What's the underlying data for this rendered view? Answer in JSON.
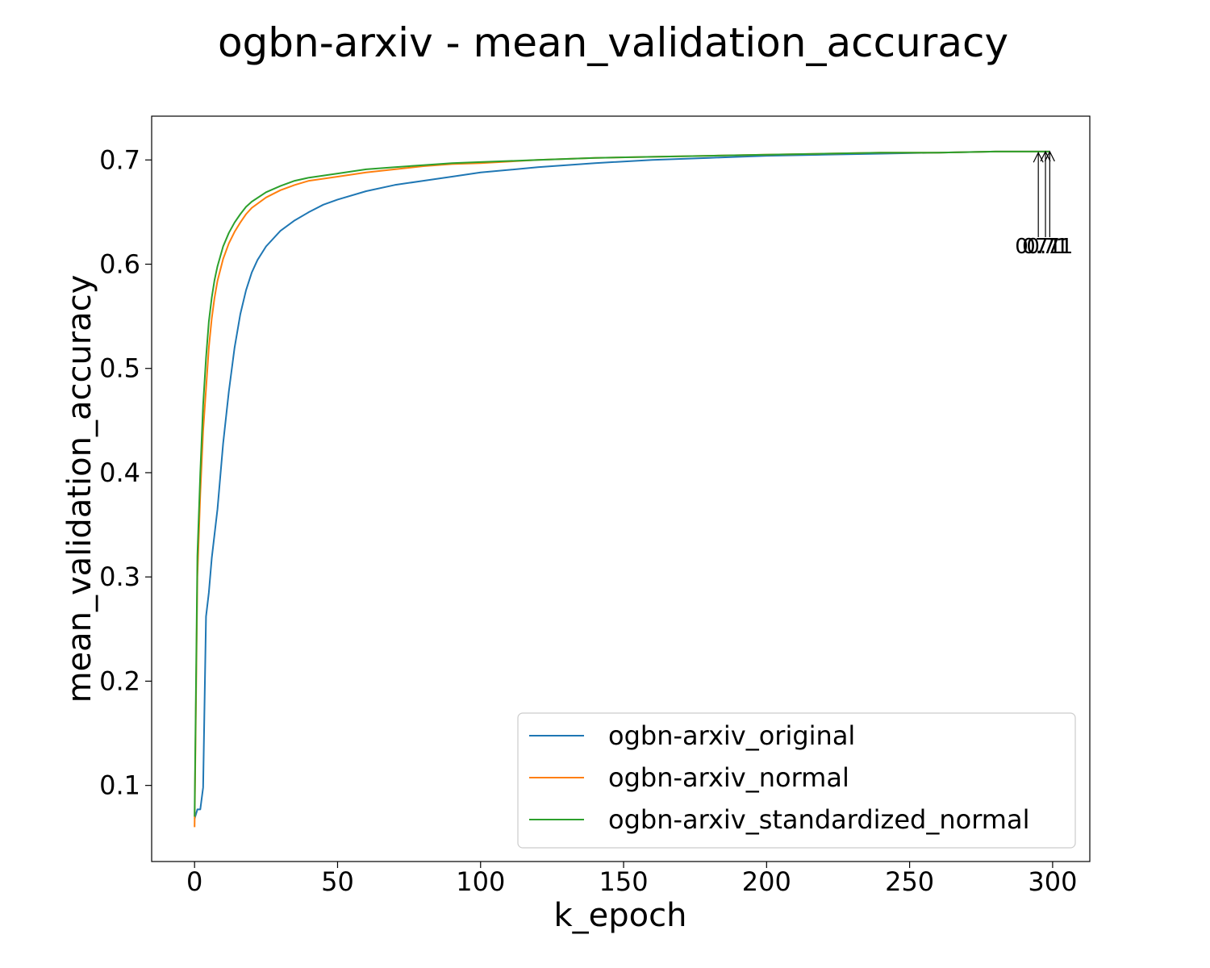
{
  "chart_data": {
    "type": "line",
    "title": "ogbn-arxiv - mean_validation_accuracy",
    "xlabel": "k_epoch",
    "ylabel": "mean_validation_accuracy",
    "xlim": [
      -15,
      313
    ],
    "ylim": [
      0.027,
      0.742
    ],
    "xticks": [
      0,
      50,
      100,
      150,
      200,
      250,
      300
    ],
    "xtick_labels": [
      "0",
      "50",
      "100",
      "150",
      "200",
      "250",
      "300"
    ],
    "yticks": [
      0.1,
      0.2,
      0.3,
      0.4,
      0.5,
      0.6,
      0.7
    ],
    "ytick_labels": [
      "0.1",
      "0.2",
      "0.3",
      "0.4",
      "0.5",
      "0.6",
      "0.7"
    ],
    "grid": false,
    "legend_position": "lower-right",
    "series": [
      {
        "name": "ogbn-arxiv_original",
        "color": "#1f77b4",
        "x": [
          0,
          1,
          2,
          3,
          4,
          5,
          6,
          8,
          10,
          12,
          14,
          16,
          18,
          20,
          22,
          25,
          30,
          35,
          40,
          45,
          50,
          60,
          70,
          80,
          90,
          100,
          120,
          140,
          160,
          180,
          200,
          220,
          240,
          260,
          280,
          299
        ],
        "y": [
          0.068,
          0.077,
          0.077,
          0.098,
          0.262,
          0.285,
          0.318,
          0.365,
          0.428,
          0.478,
          0.52,
          0.552,
          0.575,
          0.592,
          0.604,
          0.617,
          0.632,
          0.642,
          0.65,
          0.657,
          0.662,
          0.67,
          0.676,
          0.68,
          0.684,
          0.688,
          0.693,
          0.697,
          0.7,
          0.702,
          0.704,
          0.705,
          0.706,
          0.707,
          0.708,
          0.708
        ]
      },
      {
        "name": "ogbn-arxiv_normal",
        "color": "#ff7f0e",
        "x": [
          0,
          1,
          2,
          3,
          4,
          5,
          6,
          7,
          8,
          10,
          12,
          14,
          16,
          18,
          20,
          25,
          30,
          35,
          40,
          50,
          60,
          70,
          80,
          90,
          100,
          120,
          140,
          160,
          180,
          200,
          220,
          240,
          260,
          280,
          299
        ],
        "y": [
          0.06,
          0.3,
          0.38,
          0.44,
          0.48,
          0.52,
          0.548,
          0.568,
          0.584,
          0.605,
          0.62,
          0.631,
          0.64,
          0.648,
          0.654,
          0.664,
          0.671,
          0.676,
          0.68,
          0.684,
          0.688,
          0.691,
          0.694,
          0.696,
          0.697,
          0.7,
          0.702,
          0.703,
          0.704,
          0.705,
          0.706,
          0.707,
          0.707,
          0.708,
          0.708
        ]
      },
      {
        "name": "ogbn-arxiv_standardized_normal",
        "color": "#2ca02c",
        "x": [
          0,
          1,
          2,
          3,
          4,
          5,
          6,
          7,
          8,
          10,
          12,
          14,
          16,
          18,
          20,
          25,
          30,
          35,
          40,
          50,
          60,
          70,
          80,
          90,
          100,
          120,
          140,
          160,
          180,
          200,
          220,
          240,
          260,
          280,
          299
        ],
        "y": [
          0.07,
          0.32,
          0.4,
          0.465,
          0.51,
          0.545,
          0.568,
          0.585,
          0.598,
          0.617,
          0.63,
          0.64,
          0.648,
          0.655,
          0.66,
          0.669,
          0.675,
          0.68,
          0.683,
          0.687,
          0.691,
          0.693,
          0.695,
          0.697,
          0.698,
          0.7,
          0.702,
          0.703,
          0.704,
          0.705,
          0.706,
          0.707,
          0.707,
          0.708,
          0.708
        ]
      }
    ],
    "annotations": [
      {
        "text": "0.71",
        "x": 295,
        "y": 0.707,
        "text_y": 0.612,
        "series": "ogbn-arxiv_original"
      },
      {
        "text": "0.71",
        "x": 297.5,
        "y": 0.708,
        "text_y": 0.612,
        "series": "ogbn-arxiv_normal"
      },
      {
        "text": "0.71",
        "x": 299,
        "y": 0.708,
        "text_y": 0.612,
        "series": "ogbn-arxiv_standardized_normal"
      }
    ]
  }
}
